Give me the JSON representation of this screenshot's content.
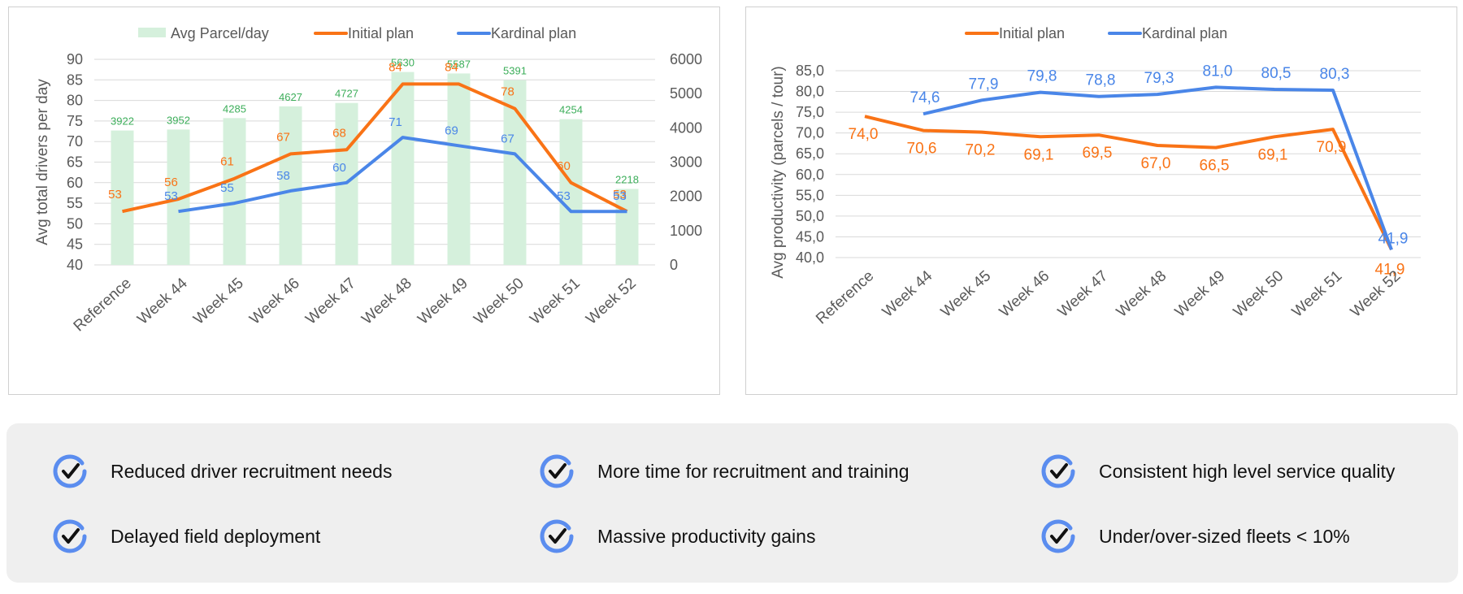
{
  "colors": {
    "bars": "#d5f0dc",
    "initial": "#f97316",
    "kardinal": "#4a86e8",
    "bar_label": "#3cae5a",
    "grid": "#d9d9d9",
    "axis_text": "#595959",
    "check_ring": "#5b8def",
    "check_mark": "#111111"
  },
  "chart_data": [
    {
      "type": "bar",
      "categories": [
        "Reference",
        "Week 44",
        "Week 45",
        "Week 46",
        "Week 47",
        "Week 48",
        "Week 49",
        "Week 50",
        "Week 51",
        "Week 52"
      ],
      "ylabel": "Avg total drivers per day",
      "ylim": [
        40,
        90
      ],
      "yticks": [
        40,
        45,
        50,
        55,
        60,
        65,
        70,
        75,
        80,
        85,
        90
      ],
      "y2lim": [
        0,
        6000
      ],
      "y2ticks": [
        0,
        1000,
        2000,
        3000,
        4000,
        5000,
        6000
      ],
      "grid": true,
      "legend_position": "top",
      "series": [
        {
          "name": "Avg Parcel/day",
          "kind": "bar",
          "axis": "right",
          "values": [
            3922,
            3952,
            4285,
            4627,
            4727,
            5630,
            5587,
            5391,
            4254,
            2218
          ]
        },
        {
          "name": "Initial plan",
          "kind": "line",
          "axis": "left",
          "values": [
            53,
            56,
            61,
            67,
            68,
            84,
            84,
            78,
            60,
            53
          ]
        },
        {
          "name": "Kardinal plan",
          "kind": "line",
          "axis": "left",
          "values": [
            null,
            53,
            55,
            58,
            60,
            71,
            69,
            67,
            53,
            53
          ]
        }
      ]
    },
    {
      "type": "line",
      "categories": [
        "Reference",
        "Week 44",
        "Week 45",
        "Week 46",
        "Week 47",
        "Week 48",
        "Week 49",
        "Week 50",
        "Week 51",
        "Week 52"
      ],
      "ylabel": "Avg productivity (parcels / tour)",
      "ylim": [
        40,
        85
      ],
      "yticks": [
        "40,0",
        "45,0",
        "50,0",
        "55,0",
        "60,0",
        "65,0",
        "70,0",
        "75,0",
        "80,0",
        "85,0"
      ],
      "grid": true,
      "legend_position": "top",
      "series": [
        {
          "name": "Initial plan",
          "values": [
            74.0,
            70.6,
            70.2,
            69.1,
            69.5,
            67.0,
            66.5,
            69.1,
            70.9,
            41.9
          ],
          "labels": [
            "74,0",
            "70,6",
            "70,2",
            "69,1",
            "69,5",
            "67,0",
            "66,5",
            "69,1",
            "70,9",
            "41,9"
          ]
        },
        {
          "name": "Kardinal plan",
          "values": [
            null,
            74.6,
            77.9,
            79.8,
            78.8,
            79.3,
            81.0,
            80.5,
            80.3,
            41.9
          ],
          "labels": [
            "",
            "74,6",
            "77,9",
            "79,8",
            "78,8",
            "79,3",
            "81,0",
            "80,5",
            "80,3",
            "41,9"
          ]
        }
      ]
    }
  ],
  "benefits": [
    {
      "label": "Reduced driver recruitment needs",
      "icon": "check-circle-icon"
    },
    {
      "label": "More time for recruitment and training",
      "icon": "check-circle-icon"
    },
    {
      "label": "Consistent high level service quality",
      "icon": "check-circle-icon"
    },
    {
      "label": "Delayed field deployment",
      "icon": "check-circle-icon"
    },
    {
      "label": "Massive productivity gains",
      "icon": "check-circle-icon"
    },
    {
      "label": "Under/over-sized fleets < 10%",
      "icon": "check-circle-icon"
    }
  ]
}
